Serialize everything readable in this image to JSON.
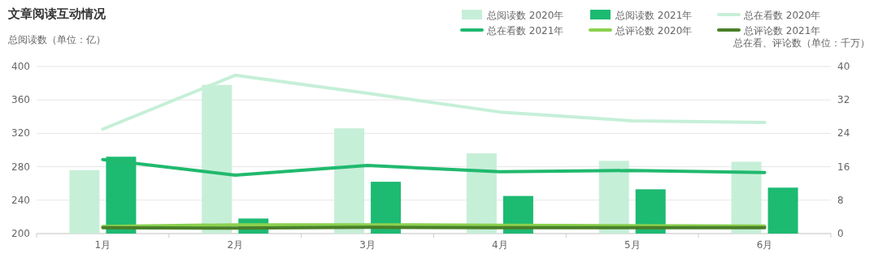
{
  "chart_data": {
    "type": "bar",
    "title": "文章阅读互动情况",
    "ylabel": "总阅读数（单位：亿）",
    "y2label": "总在看、评论数（单位：千万）",
    "categories": [
      "1月",
      "2月",
      "3月",
      "4月",
      "5月",
      "6月"
    ],
    "ylim": [
      200,
      400
    ],
    "yticks": [
      200,
      240,
      280,
      320,
      360,
      400
    ],
    "y2lim": [
      0,
      40
    ],
    "y2ticks": [
      0,
      8,
      16,
      24,
      32,
      40
    ],
    "grid": "y",
    "legend": "top right",
    "marker": "none",
    "line_style": "solid",
    "series": [
      {
        "name": "总阅读数 2020年",
        "color": "#c6efd8",
        "values": [
          276,
          378,
          326,
          296,
          287,
          286
        ]
      },
      {
        "name": "总阅读数 2021年",
        "color": "#1dba72",
        "values": [
          292,
          218,
          262,
          245,
          253,
          255
        ]
      },
      {
        "name": "总在看数 2020年",
        "type": "line",
        "axis": "y2",
        "color": "#c6efd8",
        "values": [
          25,
          37.9,
          33.6,
          29.1,
          27,
          26.6
        ]
      },
      {
        "name": "总在看数 2021年",
        "type": "line",
        "axis": "y2",
        "color": "#20b96e",
        "values": [
          17.7,
          14,
          16.3,
          14.8,
          15.1,
          14.6
        ]
      },
      {
        "name": "总评论数 2020年",
        "type": "line",
        "axis": "y2",
        "color": "#8bd14f",
        "values": [
          1.7,
          2.1,
          2.1,
          2,
          1.9,
          1.8
        ]
      },
      {
        "name": "总评论数 2021年",
        "type": "line",
        "axis": "y2",
        "color": "#4a7f2a",
        "values": [
          1.4,
          1.3,
          1.5,
          1.4,
          1.4,
          1.4
        ]
      }
    ]
  }
}
